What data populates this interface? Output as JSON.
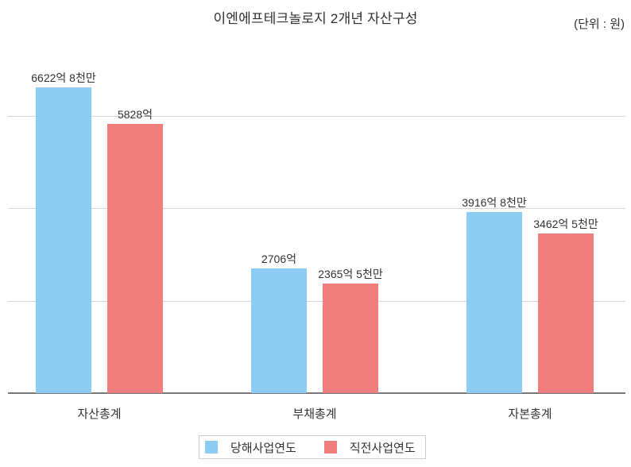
{
  "chart_data": {
    "type": "bar",
    "title": "이엔에프테크놀로지 2개년 자산구성",
    "unit_note": "(단위 : 원)",
    "categories": [
      "자산총계",
      "부채총계",
      "자본총계"
    ],
    "series": [
      {
        "name": "당해사업연도",
        "color": "#8DCDF3",
        "values_eok": [
          6622.8,
          2706,
          3916.8
        ],
        "value_labels": [
          "6622억 8천만",
          "2706억",
          "3916억 8천만"
        ]
      },
      {
        "name": "직전사업연도",
        "color": "#F17E7E",
        "values_eok": [
          5828,
          2365.5,
          3462.5
        ],
        "value_labels": [
          "5828억",
          "2365억 5천만",
          "3462억 5천만"
        ]
      }
    ],
    "ylim_eok": [
      0,
      6800
    ],
    "gridlines_at_eok": [
      2000,
      4000,
      6000
    ],
    "y_axis_tick_labels_visible": false,
    "grid": true,
    "legend_position": "bottom"
  },
  "colors": {
    "series_current": "#8DCDF3",
    "series_previous": "#F17E7E",
    "gridline": "#D6D6D6",
    "axis_line": "#787878",
    "text": "#333333",
    "legend_border": "#CCCCCC"
  }
}
